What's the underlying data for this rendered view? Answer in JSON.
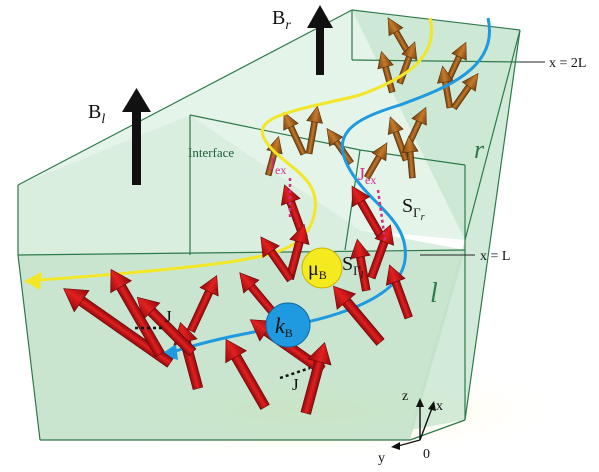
{
  "labels": {
    "field_right": {
      "main": "B",
      "sub": "r"
    },
    "field_left": {
      "main": "B",
      "sub": "l"
    },
    "boundary_far": "x = 2L",
    "boundary_mid": "x = L",
    "interface": "Interface",
    "region_right": "r",
    "region_left": "l",
    "exchange_left": {
      "main": "J",
      "sub": "ex"
    },
    "exchange_right": {
      "main": "J",
      "sub": "ex"
    },
    "spin_right": {
      "main": "S",
      "sub": "Γ",
      "subsub": "r"
    },
    "spin_left": {
      "main": "S",
      "sub": "Γ",
      "subsub": "l"
    },
    "coupling_top": "J",
    "coupling_bottom": "J",
    "mu_bubble": {
      "main": "μ",
      "sub": "B"
    },
    "k_bubble": {
      "main": "k",
      "sub": "B"
    },
    "axes": {
      "z": "z",
      "x": "x",
      "y": "y",
      "origin": "0"
    }
  },
  "colors": {
    "box_face": "#cfe8d6",
    "box_edge": "#2d7a4a",
    "red_arrow": "#d4141a",
    "brown_arrow": "#a8621c",
    "yellow_path": "#f2e626",
    "blue_path": "#1f9ae0",
    "exchange_dot": "#d62b8a",
    "mu_bubble": "#f5ea1e",
    "k_bubble": "#1f9ae0",
    "field_arrow": "#111111"
  }
}
